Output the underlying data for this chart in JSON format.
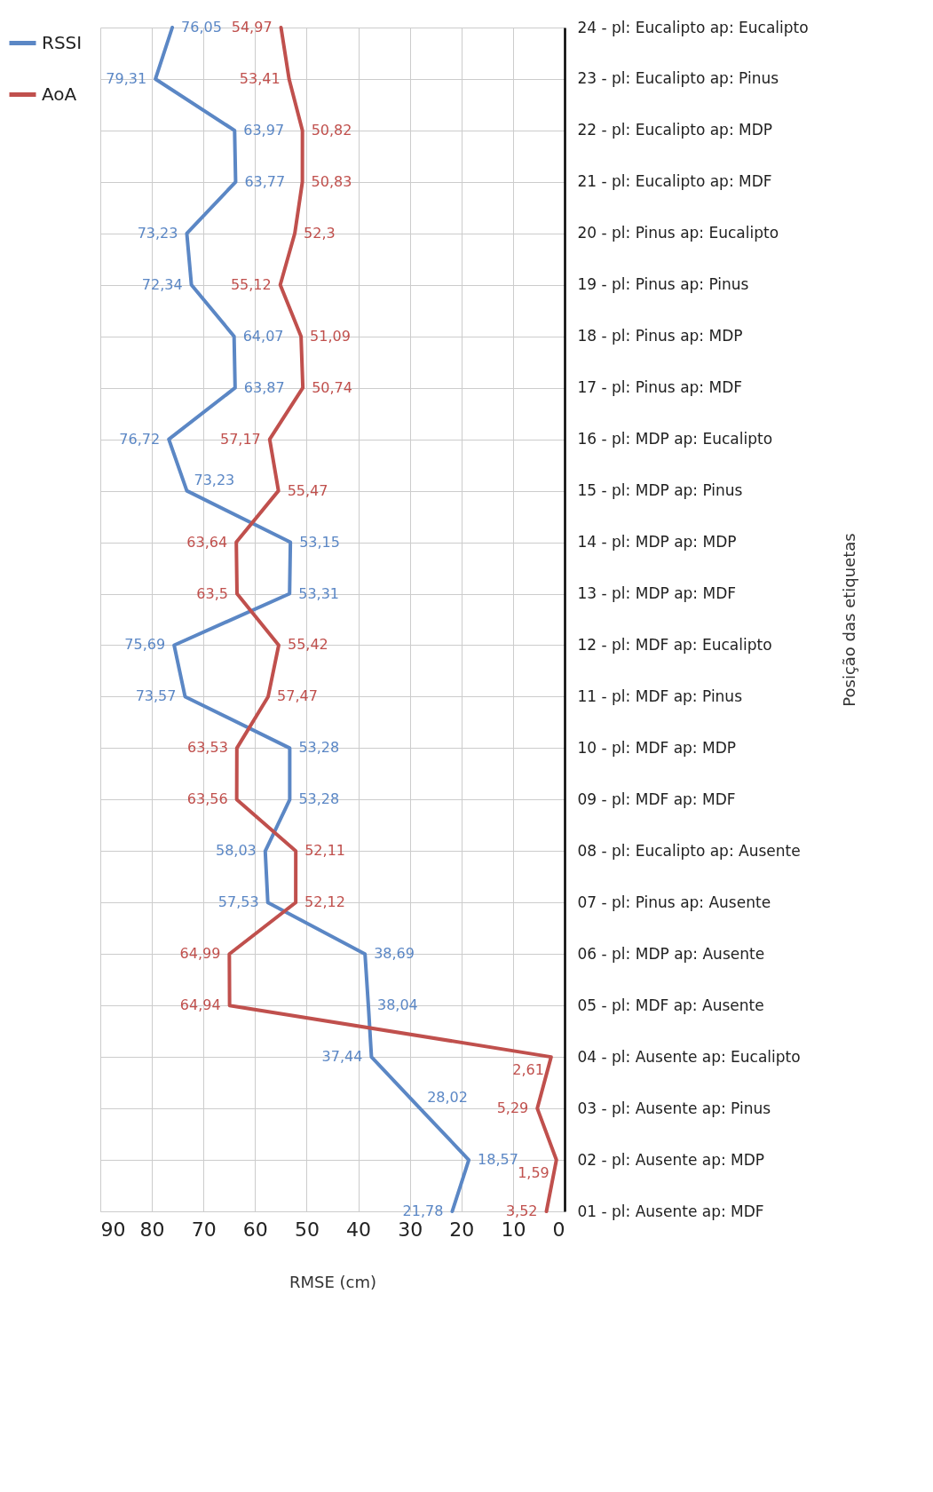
{
  "chart_data": {
    "type": "line",
    "orientation": "horizontal",
    "xlabel": "RMSE (cm)",
    "ylabel": "Posição das etiquetas",
    "categories": [
      "24 - pl: Eucalipto ap: Eucalipto",
      "23 - pl: Eucalipto ap: Pinus",
      "22 - pl: Eucalipto ap: MDP",
      "21 - pl: Eucalipto ap: MDF",
      "20 - pl: Pinus ap: Eucalipto",
      "19 - pl: Pinus ap: Pinus",
      "18 - pl: Pinus ap: MDP",
      "17 - pl: Pinus ap: MDF",
      "16 - pl: MDP ap: Eucalipto",
      "15 - pl: MDP ap: Pinus",
      "14 - pl: MDP ap: MDP",
      "13 - pl: MDP ap: MDF",
      "12 - pl: MDF ap: Eucalipto",
      "11 - pl: MDF ap: Pinus",
      "10 - pl: MDF ap: MDP",
      "09 - pl: MDF ap: MDF",
      "08 - pl: Eucalipto ap: Ausente",
      "07 - pl: Pinus ap: Ausente",
      "06 - pl: MDP ap: Ausente",
      "05 - pl: MDF ap: Ausente",
      "04 - pl: Ausente ap: Eucalipto",
      "03 - pl: Ausente ap: Pinus",
      "02 - pl: Ausente ap: MDP",
      "01 - pl: Ausente ap: MDF"
    ],
    "series": [
      {
        "name": "RSSI",
        "color": "#5b87c5",
        "values": [
          76.05,
          79.31,
          63.97,
          63.77,
          73.23,
          72.34,
          64.07,
          63.87,
          76.72,
          73.23,
          53.15,
          53.31,
          75.69,
          73.57,
          53.28,
          53.28,
          58.03,
          57.53,
          38.69,
          38.04,
          37.44,
          28.02,
          18.57,
          21.78
        ],
        "value_labels": [
          "76,05",
          "79,31",
          "63,97",
          "63,77",
          "73,23",
          "72,34",
          "64,07",
          "63,87",
          "76,72",
          "73,23",
          "53,15",
          "53,31",
          "75,69",
          "73,57",
          "53,28",
          "53,28",
          "58,03",
          "57,53",
          "38,69",
          "38,04",
          "37,44",
          "28,02",
          "18,57",
          "21,78"
        ]
      },
      {
        "name": "AoA",
        "color": "#c0504d",
        "values": [
          54.97,
          53.41,
          50.82,
          50.83,
          52.3,
          55.12,
          51.09,
          50.74,
          57.17,
          55.47,
          63.64,
          63.5,
          55.42,
          57.47,
          63.53,
          63.56,
          52.11,
          52.12,
          64.99,
          64.94,
          2.61,
          5.29,
          1.59,
          3.52
        ],
        "value_labels": [
          "54,97",
          "53,41",
          "50,82",
          "50,83",
          "52,3",
          "55,12",
          "51,09",
          "50,74",
          "57,17",
          "55,47",
          "63,64",
          "63,5",
          "55,42",
          "57,47",
          "63,53",
          "63,56",
          "52,11",
          "52,12",
          "64,99",
          "64,94",
          "2,61",
          "5,29",
          "1,59",
          "3,52"
        ]
      }
    ],
    "xlim": [
      90,
      0
    ],
    "xticks": [
      0,
      10,
      20,
      30,
      40,
      50,
      60,
      70,
      80,
      90
    ],
    "grid": true,
    "legend": "left"
  }
}
